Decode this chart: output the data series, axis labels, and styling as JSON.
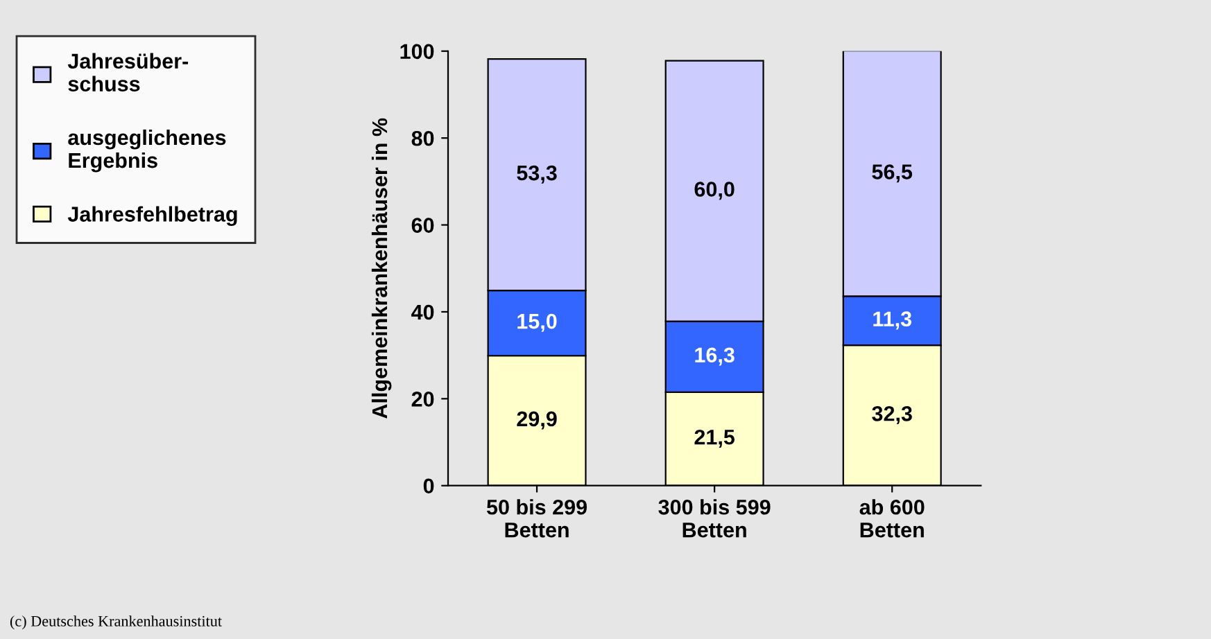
{
  "chart_data": {
    "type": "bar",
    "stacked": true,
    "ylabel": "Allgemeinkrankenhäuser in %",
    "categories": [
      "50 bis 299\nBetten",
      "300 bis 599\nBetten",
      "ab 600\nBetten"
    ],
    "series": [
      {
        "name": "Jahresfehlbetrag",
        "color": "#ffffcc",
        "values": [
          29.9,
          21.5,
          32.3
        ],
        "value_labels": [
          "29,9",
          "21,5",
          "32,3"
        ]
      },
      {
        "name": "ausgeglichenes\nErgebnis",
        "color": "#3366ff",
        "values": [
          15.0,
          16.3,
          11.3
        ],
        "value_labels": [
          "15,0",
          "16,3",
          "11,3"
        ]
      },
      {
        "name": "Jahresüber-\nschuss",
        "color": "#ccccff",
        "values": [
          53.3,
          60.0,
          56.5
        ],
        "value_labels": [
          "53,3",
          "60,0",
          "56,5"
        ]
      }
    ],
    "ylim": [
      0,
      100
    ],
    "yticks": [
      0,
      20,
      40,
      60,
      80,
      100
    ],
    "grid": false,
    "legend": "left",
    "annotations": [
      "(c) Deutsches Krankenhausinstitut"
    ]
  }
}
